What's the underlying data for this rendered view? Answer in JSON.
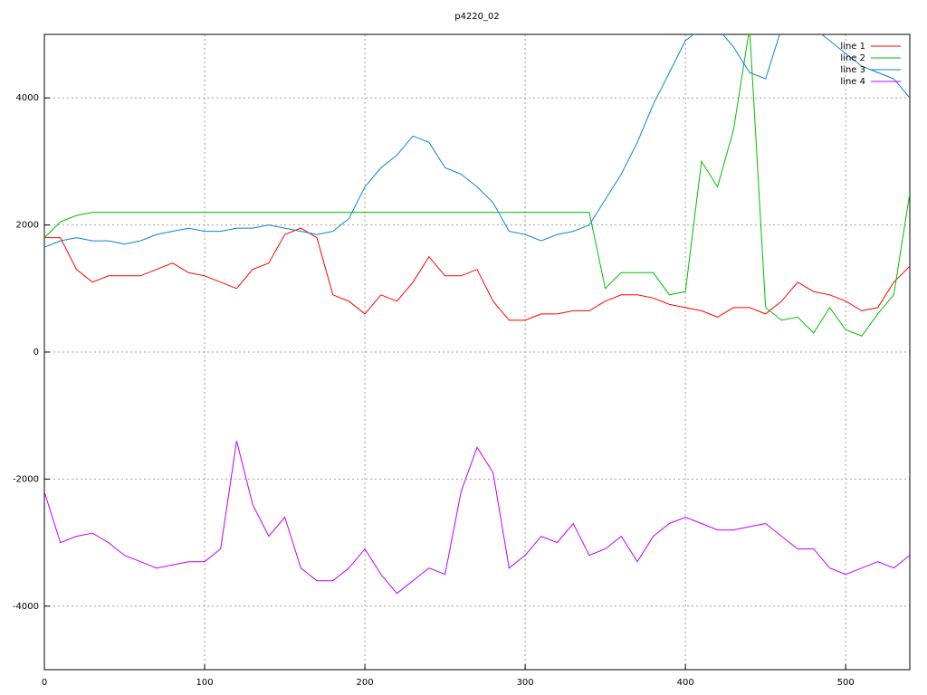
{
  "chart_data": {
    "type": "line",
    "title": "p4220_02",
    "x": [
      0,
      10,
      20,
      30,
      40,
      50,
      60,
      70,
      80,
      90,
      100,
      110,
      120,
      130,
      140,
      150,
      160,
      170,
      180,
      190,
      200,
      210,
      220,
      230,
      240,
      250,
      260,
      270,
      280,
      290,
      300,
      310,
      320,
      330,
      340,
      350,
      360,
      370,
      380,
      390,
      400,
      410,
      420,
      430,
      440,
      450,
      460,
      470,
      480,
      490,
      500,
      510,
      520,
      530,
      540
    ],
    "series": [
      {
        "name": "line 1",
        "color": "#ff0000",
        "values": [
          1800,
          1800,
          1300,
          1100,
          1200,
          1200,
          1200,
          1300,
          1400,
          1250,
          1200,
          1100,
          1000,
          1300,
          1400,
          1850,
          1950,
          1800,
          900,
          800,
          600,
          900,
          800,
          1100,
          1500,
          1200,
          1200,
          1300,
          800,
          500,
          500,
          600,
          600,
          650,
          650,
          800,
          900,
          900,
          850,
          750,
          700,
          650,
          550,
          700,
          700,
          600,
          800,
          1100,
          950,
          900,
          800,
          650,
          700,
          1100,
          1350
        ]
      },
      {
        "name": "line 2",
        "color": "#00c000",
        "values": [
          1800,
          2050,
          2150,
          2200,
          2200,
          2200,
          2200,
          2200,
          2200,
          2200,
          2200,
          2200,
          2200,
          2200,
          2200,
          2200,
          2200,
          2200,
          2200,
          2200,
          2200,
          2200,
          2200,
          2200,
          2200,
          2200,
          2200,
          2200,
          2200,
          2200,
          2200,
          2200,
          2200,
          2200,
          2200,
          1000,
          1250,
          1250,
          1250,
          900,
          950,
          3000,
          2600,
          3500,
          5100,
          700,
          500,
          550,
          300,
          700,
          350,
          250,
          600,
          900,
          2500
        ]
      },
      {
        "name": "line 3",
        "color": "#0a85d0",
        "values": [
          1650,
          1750,
          1800,
          1750,
          1750,
          1700,
          1750,
          1850,
          1900,
          1950,
          1900,
          1900,
          1950,
          1950,
          2000,
          1950,
          1900,
          1850,
          1900,
          2100,
          2600,
          2900,
          3100,
          3400,
          3300,
          2900,
          2800,
          2600,
          2350,
          1900,
          1850,
          1750,
          1850,
          1900,
          2000,
          2400,
          2800,
          3300,
          3900,
          4400,
          4900,
          5100,
          5100,
          4800,
          4400,
          4300,
          5100,
          5100,
          5100,
          4900,
          4700,
          4500,
          4400,
          4300,
          4000
        ]
      },
      {
        "name": "line 4",
        "color": "#c000ff",
        "values": [
          -2200,
          -3000,
          -2900,
          -2850,
          -3000,
          -3200,
          -3300,
          -3400,
          -3350,
          -3300,
          -3300,
          -3100,
          -1400,
          -2400,
          -2900,
          -2600,
          -3400,
          -3600,
          -3600,
          -3400,
          -3100,
          -3500,
          -3800,
          -3600,
          -3400,
          -3500,
          -2200,
          -1500,
          -1900,
          -3400,
          -3200,
          -2900,
          -3000,
          -2700,
          -3200,
          -3100,
          -2900,
          -3300,
          -2900,
          -2700,
          -2600,
          -2700,
          -2800,
          -2800,
          -2750,
          -2700,
          -2900,
          -3100,
          -3100,
          -3400,
          -3500,
          -3400,
          -3300,
          -3400,
          -3200
        ]
      }
    ],
    "xlim": [
      0,
      540
    ],
    "xticks": [
      0,
      100,
      200,
      300,
      400,
      500
    ],
    "ylim": [
      -5000,
      5000
    ],
    "yticks": [
      -4000,
      -2000,
      0,
      2000,
      4000
    ],
    "grid": true,
    "legend": "top-right"
  }
}
